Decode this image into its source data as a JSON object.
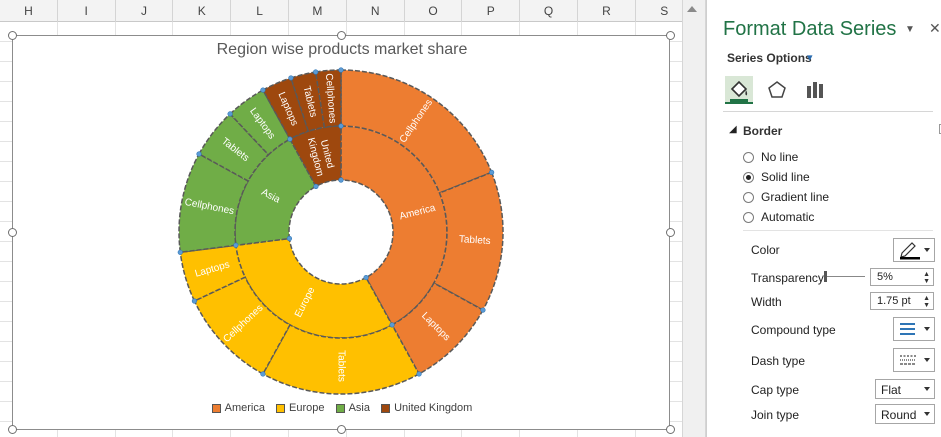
{
  "spreadsheet": {
    "columns": [
      "H",
      "I",
      "J",
      "K",
      "L",
      "M",
      "N",
      "O",
      "P",
      "Q",
      "R",
      "S"
    ]
  },
  "chart": {
    "title": "Region wise products market share",
    "legend": [
      "America",
      "Europe",
      "Asia",
      "United Kingdom"
    ]
  },
  "chart_data": {
    "type": "sunburst",
    "title": "Region wise products market share",
    "colors": {
      "America": "#ed7d31",
      "Europe": "#ffc000",
      "Asia": "#70ad47",
      "United Kingdom": "#9e480e"
    },
    "regions": [
      {
        "name": "America",
        "value": 42,
        "products": [
          {
            "name": "Cellphones",
            "value": 19
          },
          {
            "name": "Tablets",
            "value": 14
          },
          {
            "name": "Laptops",
            "value": 9
          }
        ]
      },
      {
        "name": "Europe",
        "value": 31,
        "products": [
          {
            "name": "Tablets",
            "value": 16
          },
          {
            "name": "Cellphones",
            "value": 10
          },
          {
            "name": "Laptops",
            "value": 5
          }
        ]
      },
      {
        "name": "Asia",
        "value": 19,
        "products": [
          {
            "name": "Cellphones",
            "value": 10
          },
          {
            "name": "Tablets",
            "value": 5
          },
          {
            "name": "Laptops",
            "value": 4
          }
        ]
      },
      {
        "name": "United Kingdom",
        "value": 8,
        "labelLines": [
          "United",
          "Kingdom"
        ],
        "products": [
          {
            "name": "Laptops",
            "value": 3
          },
          {
            "name": "Tablets",
            "value": 2.5
          },
          {
            "name": "Cellphones",
            "value": 2.5
          }
        ]
      }
    ],
    "legend_position": "bottom"
  },
  "pane": {
    "title": "Format Data Series",
    "series_options": "Series Options",
    "tab_icons": [
      "fill-line-icon",
      "effects-pentagon-icon",
      "series-options-bars-icon"
    ],
    "section": "Border",
    "line_options": [
      "No line",
      "Solid line",
      "Gradient line",
      "Automatic"
    ],
    "selected_line": "Solid line",
    "color_label": "Color",
    "transparency_label": "Transparency",
    "transparency_value": "5%",
    "width_label": "Width",
    "width_value": "1.75 pt",
    "compound_label": "Compound type",
    "dash_label": "Dash type",
    "cap_label": "Cap type",
    "cap_value": "Flat",
    "join_label": "Join type",
    "join_value": "Round"
  }
}
